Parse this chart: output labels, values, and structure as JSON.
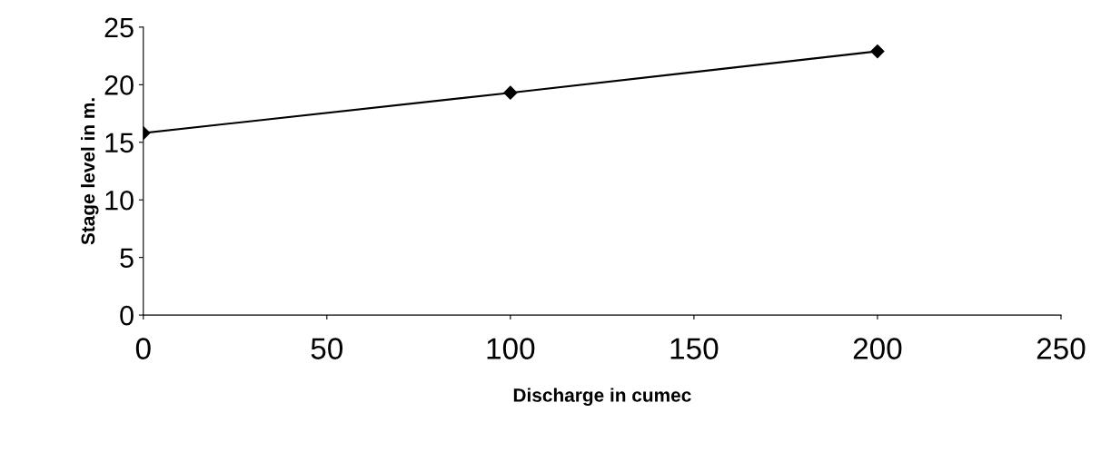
{
  "chart_data": {
    "type": "line",
    "xlabel": "Discharge in cumec",
    "ylabel": "Stage level in m.",
    "x": [
      0,
      100,
      200
    ],
    "series": [
      {
        "color": "#000000",
        "values": [
          15.8,
          19.3,
          22.9
        ]
      }
    ],
    "xlim": [
      0,
      250
    ],
    "xticks": [
      0,
      50,
      100,
      150,
      200,
      250
    ],
    "ylim": [
      0,
      25
    ],
    "yticks": [
      0,
      5,
      10,
      15,
      20,
      25
    ],
    "marker": "diamond",
    "line_style": "solid",
    "grid": false,
    "legend": false
  }
}
